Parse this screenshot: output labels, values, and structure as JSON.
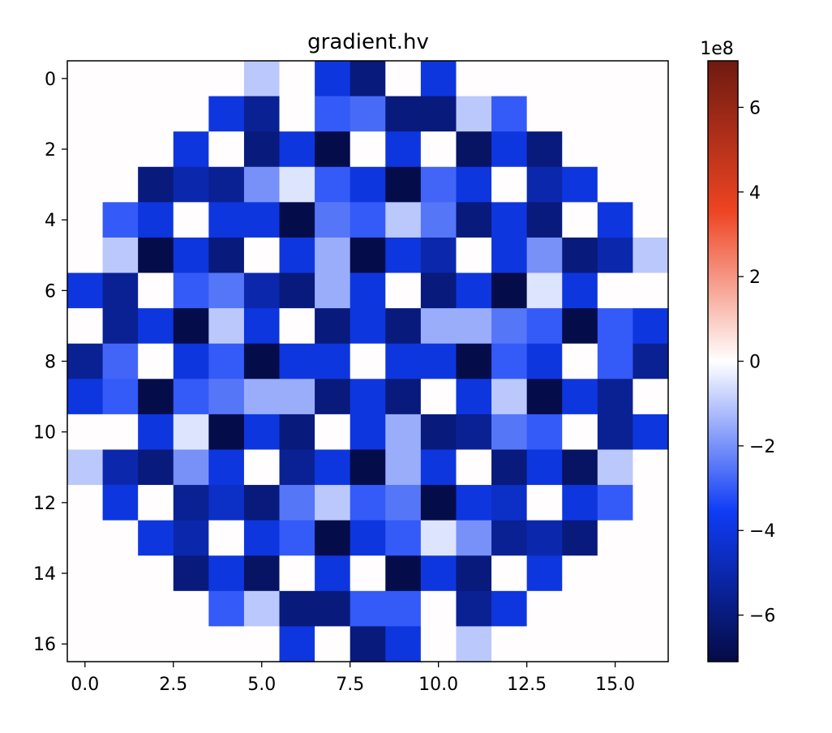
{
  "chart_data": {
    "type": "heatmap",
    "title": "gradient.hv",
    "xlabel": "",
    "ylabel": "",
    "x_ticks": [
      "0.0",
      "2.5",
      "5.0",
      "7.5",
      "10.0",
      "12.5",
      "15.0"
    ],
    "x_tick_values": [
      0,
      2.5,
      5,
      7.5,
      10,
      12.5,
      15
    ],
    "y_ticks": [
      "0",
      "2",
      "4",
      "6",
      "8",
      "10",
      "12",
      "14",
      "16"
    ],
    "y_tick_values": [
      0,
      2,
      4,
      6,
      8,
      10,
      12,
      14,
      16
    ],
    "xlim": [
      -0.5,
      16.5
    ],
    "ylim": [
      16.5,
      -0.5
    ],
    "colorbar": {
      "colormap": "diverging-blue-white-red",
      "vmin": -7.1,
      "vmax": 7.1,
      "exponent_label": "1e8",
      "ticks": [
        "−6",
        "−4",
        "−2",
        "0",
        "2",
        "4",
        "6"
      ],
      "tick_values": [
        -6,
        -4,
        -2,
        0,
        2,
        4,
        6
      ],
      "colors": {
        "min": "#050b45",
        "mid_low": "#0f3cf5",
        "center": "#ffffff",
        "mid_high": "#ee4422",
        "max": "#6e1a10"
      }
    },
    "grid": false,
    "values": [
      [
        0,
        0,
        0,
        0,
        0,
        -1,
        0,
        -4,
        -6,
        0,
        -4,
        0,
        0,
        0,
        0,
        0,
        0
      ],
      [
        0,
        0,
        0,
        0,
        -4,
        -5.5,
        0,
        -3,
        -2.7,
        -6,
        -6,
        -1,
        -3,
        0,
        0,
        0,
        0
      ],
      [
        0,
        0,
        0,
        -4,
        0,
        -6,
        -4,
        -7,
        0,
        -4,
        0,
        -6.5,
        -4,
        -6,
        0,
        0,
        0
      ],
      [
        0,
        0,
        -6,
        -5,
        -5.5,
        -2,
        -0.5,
        -3,
        -4,
        -7,
        -2.8,
        -4,
        0,
        -5,
        -4,
        0,
        0
      ],
      [
        0,
        -3,
        -4,
        0,
        -4,
        -4,
        -7,
        -2.5,
        -3,
        -1,
        -2.5,
        -6,
        -4,
        -6,
        0,
        -4,
        0
      ],
      [
        0,
        -1,
        -7,
        -4,
        -6,
        0,
        -4,
        -1.5,
        -7,
        -4,
        -5,
        0,
        -4,
        -2,
        -6,
        -5,
        -1
      ],
      [
        -4,
        -5.5,
        0,
        -3,
        -2.5,
        -5,
        -6,
        -1.5,
        -4,
        0,
        -6,
        -4,
        -7,
        -0.5,
        -4,
        0,
        0
      ],
      [
        0,
        -5.5,
        -4,
        -7,
        -1,
        -4,
        0,
        -6,
        -4,
        -6,
        -1.5,
        -1.5,
        -2.5,
        -3,
        -7,
        -3,
        -4
      ],
      [
        -5.5,
        -2.8,
        0,
        -4,
        -3,
        -7,
        -4,
        -4,
        0,
        -4,
        -4,
        -7,
        -3,
        -4,
        0,
        -3,
        -5.5
      ],
      [
        -4,
        -3,
        -7,
        -3,
        -2.5,
        -1.5,
        -1.5,
        -6,
        -4,
        -6,
        0,
        -4,
        -1,
        -7,
        -4,
        -5.5,
        0
      ],
      [
        0,
        0,
        -4,
        -0.5,
        -7,
        -4,
        -6,
        0,
        -4,
        -1.5,
        -6,
        -5.5,
        -2.5,
        -3,
        0,
        -5.5,
        -4
      ],
      [
        -1,
        -5,
        -6,
        -2,
        -4,
        0,
        -5.5,
        -4,
        -7,
        -1.5,
        -4,
        0,
        -6,
        -4,
        -6.5,
        -1,
        0
      ],
      [
        0,
        -4,
        0,
        -5.5,
        -4.5,
        -6,
        -2.5,
        -1,
        -3,
        -2.5,
        -7,
        -4,
        -4.5,
        0,
        -4,
        -3,
        0
      ],
      [
        0,
        0,
        -4,
        -5,
        0,
        -4,
        -3,
        -7,
        -4,
        -3,
        -0.5,
        -2,
        -5.5,
        -5,
        -6,
        0,
        0
      ],
      [
        0,
        0,
        0,
        -6,
        -4,
        -6.5,
        0,
        -4,
        0,
        -7,
        -4,
        -6,
        0,
        -4,
        0,
        0,
        0
      ],
      [
        0,
        0,
        0,
        0,
        -3,
        -1,
        -6,
        -6,
        -3,
        -3,
        0,
        -5.5,
        -4,
        0,
        0,
        0,
        0
      ],
      [
        0,
        0,
        0,
        0,
        0,
        0,
        -4,
        0,
        -6,
        -4,
        0,
        -1,
        0,
        0,
        0,
        0,
        0
      ]
    ]
  }
}
